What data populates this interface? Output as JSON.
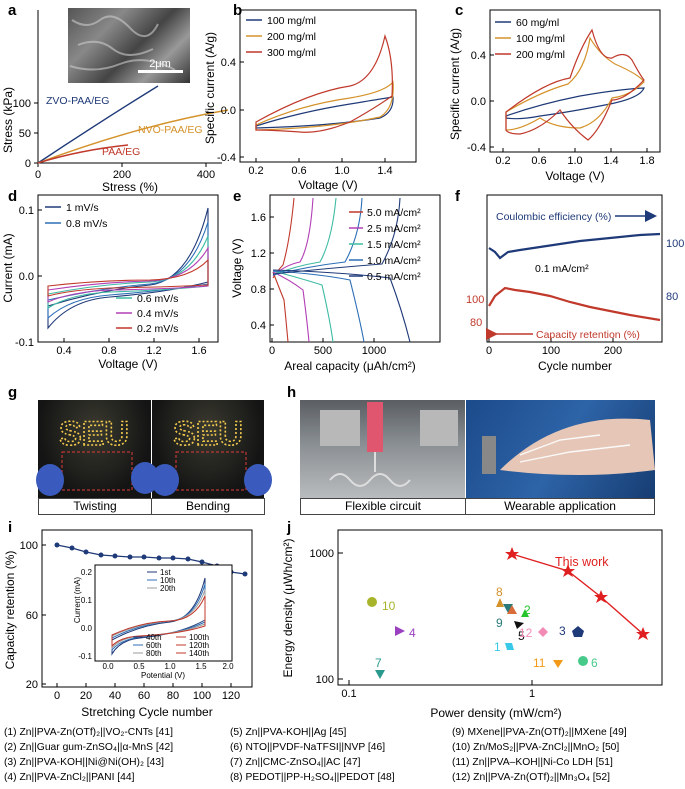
{
  "panels": {
    "a": {
      "label": "a",
      "xlabel": "Stress (%)",
      "ylabel": "Stress (kPa)",
      "xticks": [
        "0",
        "200",
        "400"
      ],
      "yticks": [
        "0",
        "50",
        "100"
      ],
      "scale": "2μm",
      "curves": [
        "ZVO-PAA/EG",
        "NVO-PAA/EG",
        "PAA/EG"
      ]
    },
    "b": {
      "label": "b",
      "xlabel": "Voltage (V)",
      "ylabel": "Specific current (A/g)",
      "xticks": [
        "0.2",
        "0.6",
        "1.0",
        "1.4"
      ],
      "yticks": [
        "-0.4",
        "0.0",
        "0.4"
      ],
      "legend": [
        "100 mg/ml",
        "200 mg/ml",
        "300 mg/ml"
      ]
    },
    "c": {
      "label": "c",
      "xlabel": "Voltage (V)",
      "ylabel": "Specific current (A/g)",
      "xticks": [
        "0.2",
        "0.6",
        "1.0",
        "1.4",
        "1.8"
      ],
      "yticks": [
        "-0.4",
        "0.0",
        "0.4"
      ],
      "legend": [
        "60 mg/ml",
        "100 mg/ml",
        "200 mg/ml"
      ]
    },
    "d": {
      "label": "d",
      "xlabel": "Voltage (V)",
      "ylabel": "Current (mA)",
      "xticks": [
        "0.4",
        "0.8",
        "1.2",
        "1.6"
      ],
      "yticks": [
        "-0.1",
        "0.0",
        "0.1"
      ],
      "legend_top": [
        "1 mV/s",
        "0.8 mV/s"
      ],
      "legend_bottom": [
        "0.6 mV/s",
        "0.4 mV/s",
        "0.2 mV/s"
      ]
    },
    "e": {
      "label": "e",
      "xlabel": "Areal capacity (μAh/cm²)",
      "ylabel": "Voltage (V)",
      "xticks": [
        "0",
        "500",
        "1000"
      ],
      "yticks": [
        "0.4",
        "0.8",
        "1.2",
        "1.6"
      ],
      "legend": [
        "5.0 mA/cm²",
        "2.5 mA/cm²",
        "1.5 mA/cm²",
        "1.0 mA/cm²",
        "0.5 mA/cm²"
      ]
    },
    "f": {
      "label": "f",
      "xlabel": "Cycle number",
      "xticks": [
        "0",
        "100",
        "200"
      ],
      "yticks_right": [
        "100",
        "80"
      ],
      "yticks_left": [
        "100",
        "80"
      ],
      "ce_label": "Coulombic efficiency (%)",
      "cr_label": "Capacity retention (%)",
      "current": "0.1 mA/cm²"
    },
    "g": {
      "label": "g",
      "captions": [
        "Twisting",
        "Bending"
      ],
      "sign": "SEU"
    },
    "h": {
      "label": "h",
      "captions": [
        "Flexible circuit",
        "Wearable application"
      ]
    },
    "i": {
      "label": "i",
      "xlabel": "Stretching Cycle number",
      "ylabel": "Capacity retention (%)",
      "xticks": [
        "0",
        "20",
        "40",
        "60",
        "80",
        "100",
        "120"
      ],
      "yticks": [
        "100",
        "60",
        "20"
      ],
      "inset": {
        "xlabel": "Potential (V)",
        "ylabel": "Current (mA)",
        "xticks": [
          "0.0",
          "0.5",
          "1.0",
          "1.5",
          "2.0"
        ],
        "yticks": [
          "0.2",
          "0.1",
          "0.0",
          "-0.1"
        ],
        "legend_top": [
          "1st",
          "10th",
          "20th"
        ],
        "legend_bottom": [
          "40th",
          "60th",
          "80th",
          "100th",
          "120th",
          "140th"
        ]
      }
    },
    "j": {
      "label": "j",
      "xlabel": "Power density (mW/cm²)",
      "ylabel": "Energy density (μWh/cm²)",
      "xticks": [
        "0.1",
        "1"
      ],
      "yticks": [
        "1000",
        "100"
      ],
      "this_work": "This work",
      "point_labels": [
        "1",
        "2",
        "3",
        "4",
        "5",
        "6",
        "7",
        "8",
        "9",
        "10",
        "11",
        "12"
      ]
    }
  },
  "references": [
    "(1) Zn||PVA-Zn(OTf)₂||VO₂-CNTs [41]",
    "(2) Zn||Guar gum-ZnSO₄||α-MnS [42]",
    "(3) Zn||PVA-KOH||Ni@Ni(OH)₂ [43]",
    "(4) Zn||PVA-ZnCl₂||PANI [44]",
    "(5) Zn||PVA-KOH||Ag [45]",
    "(6) NTO||PVDF-NaTFSI||NVP [46]",
    "(7) Zn||CMC-ZnSO₄||AC [47]",
    "(8) PEDOT||PP-H₂SO₄||PEDOT [48]",
    "(9) MXene||PVA-Zn(OTf)₂||MXene [49]",
    "(10) Zn/MoS₂||PVA-ZnCl₂||MnO₂ [50]",
    "(11) Zn||PVA–KOH||Ni-Co LDH [51]",
    "(12) Zn||PVA-Zn(OTf)₂||Mn₃O₄ [52]"
  ],
  "colors": {
    "navy": "#1f3a78",
    "orange": "#d4922a",
    "red": "#c0392b",
    "teal": "#3dbba3",
    "magenta": "#b23fb5",
    "blue": "#2c6fb7"
  }
}
